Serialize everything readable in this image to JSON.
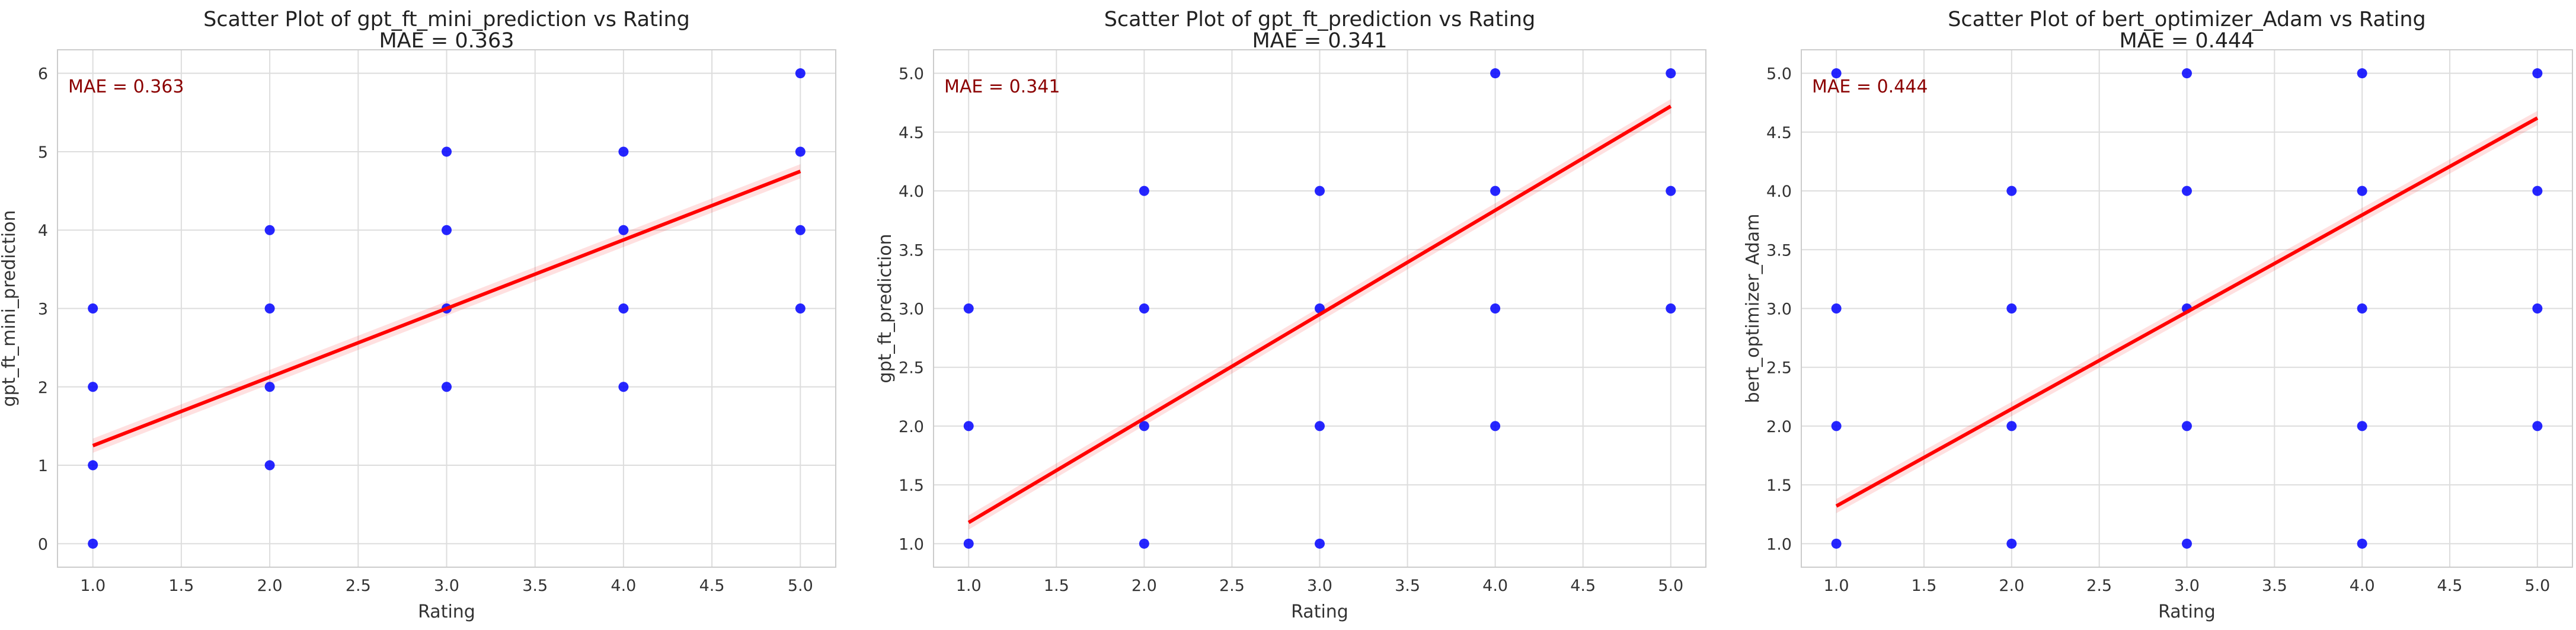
{
  "chart_data": [
    {
      "type": "scatter",
      "title": "Scatter Plot of gpt_ft_mini_prediction vs Rating",
      "subtitle": "MAE = 0.363",
      "annotation": "MAE = 0.363",
      "xlabel": "Rating",
      "ylabel": "gpt_ft_mini_prediction",
      "xlim": [
        0.8,
        5.2
      ],
      "ylim": [
        -0.3,
        6.3
      ],
      "xticks": [
        1.0,
        1.5,
        2.0,
        2.5,
        3.0,
        3.5,
        4.0,
        4.5,
        5.0
      ],
      "xtick_labels": [
        "1.0",
        "1.5",
        "2.0",
        "2.5",
        "3.0",
        "3.5",
        "4.0",
        "4.5",
        "5.0"
      ],
      "yticks": [
        0,
        1,
        2,
        3,
        4,
        5,
        6
      ],
      "ytick_labels": [
        "0",
        "1",
        "2",
        "3",
        "4",
        "5",
        "6"
      ],
      "points": [
        {
          "x": 1,
          "y": 0
        },
        {
          "x": 1,
          "y": 1
        },
        {
          "x": 1,
          "y": 2
        },
        {
          "x": 1,
          "y": 3
        },
        {
          "x": 2,
          "y": 1
        },
        {
          "x": 2,
          "y": 2
        },
        {
          "x": 2,
          "y": 3
        },
        {
          "x": 2,
          "y": 4
        },
        {
          "x": 3,
          "y": 2
        },
        {
          "x": 3,
          "y": 3
        },
        {
          "x": 3,
          "y": 4
        },
        {
          "x": 3,
          "y": 5
        },
        {
          "x": 4,
          "y": 2
        },
        {
          "x": 4,
          "y": 3
        },
        {
          "x": 4,
          "y": 4
        },
        {
          "x": 4,
          "y": 5
        },
        {
          "x": 5,
          "y": 3
        },
        {
          "x": 5,
          "y": 4
        },
        {
          "x": 5,
          "y": 5
        },
        {
          "x": 5,
          "y": 6
        }
      ],
      "regression": {
        "x": [
          1,
          5
        ],
        "y": [
          1.25,
          4.75
        ]
      },
      "grid": true,
      "point_color": "#0000ff",
      "line_color": "#ff0000",
      "annotation_color": "#8b0000"
    },
    {
      "type": "scatter",
      "title": "Scatter Plot of gpt_ft_prediction vs Rating",
      "subtitle": "MAE = 0.341",
      "annotation": "MAE = 0.341",
      "xlabel": "Rating",
      "ylabel": "gpt_ft_prediction",
      "xlim": [
        0.8,
        5.2
      ],
      "ylim": [
        0.8,
        5.2
      ],
      "xticks": [
        1.0,
        1.5,
        2.0,
        2.5,
        3.0,
        3.5,
        4.0,
        4.5,
        5.0
      ],
      "xtick_labels": [
        "1.0",
        "1.5",
        "2.0",
        "2.5",
        "3.0",
        "3.5",
        "4.0",
        "4.5",
        "5.0"
      ],
      "yticks": [
        1.0,
        1.5,
        2.0,
        2.5,
        3.0,
        3.5,
        4.0,
        4.5,
        5.0
      ],
      "ytick_labels": [
        "1.0",
        "1.5",
        "2.0",
        "2.5",
        "3.0",
        "3.5",
        "4.0",
        "4.5",
        "5.0"
      ],
      "points": [
        {
          "x": 1,
          "y": 1
        },
        {
          "x": 1,
          "y": 2
        },
        {
          "x": 1,
          "y": 3
        },
        {
          "x": 2,
          "y": 1
        },
        {
          "x": 2,
          "y": 2
        },
        {
          "x": 2,
          "y": 3
        },
        {
          "x": 2,
          "y": 4
        },
        {
          "x": 3,
          "y": 1
        },
        {
          "x": 3,
          "y": 2
        },
        {
          "x": 3,
          "y": 3
        },
        {
          "x": 3,
          "y": 4
        },
        {
          "x": 4,
          "y": 2
        },
        {
          "x": 4,
          "y": 3
        },
        {
          "x": 4,
          "y": 4
        },
        {
          "x": 4,
          "y": 5
        },
        {
          "x": 5,
          "y": 3
        },
        {
          "x": 5,
          "y": 4
        },
        {
          "x": 5,
          "y": 5
        }
      ],
      "regression": {
        "x": [
          1,
          5
        ],
        "y": [
          1.18,
          4.72
        ]
      },
      "grid": true,
      "point_color": "#0000ff",
      "line_color": "#ff0000",
      "annotation_color": "#8b0000"
    },
    {
      "type": "scatter",
      "title": "Scatter Plot of bert_optimizer_Adam vs Rating",
      "subtitle": "MAE = 0.444",
      "annotation": "MAE = 0.444",
      "xlabel": "Rating",
      "ylabel": "bert_optimizer_Adam",
      "xlim": [
        0.8,
        5.2
      ],
      "ylim": [
        0.8,
        5.2
      ],
      "xticks": [
        1.0,
        1.5,
        2.0,
        2.5,
        3.0,
        3.5,
        4.0,
        4.5,
        5.0
      ],
      "xtick_labels": [
        "1.0",
        "1.5",
        "2.0",
        "2.5",
        "3.0",
        "3.5",
        "4.0",
        "4.5",
        "5.0"
      ],
      "yticks": [
        1.0,
        1.5,
        2.0,
        2.5,
        3.0,
        3.5,
        4.0,
        4.5,
        5.0
      ],
      "ytick_labels": [
        "1.0",
        "1.5",
        "2.0",
        "2.5",
        "3.0",
        "3.5",
        "4.0",
        "4.5",
        "5.0"
      ],
      "points": [
        {
          "x": 1,
          "y": 1
        },
        {
          "x": 1,
          "y": 2
        },
        {
          "x": 1,
          "y": 3
        },
        {
          "x": 1,
          "y": 5
        },
        {
          "x": 2,
          "y": 1
        },
        {
          "x": 2,
          "y": 2
        },
        {
          "x": 2,
          "y": 3
        },
        {
          "x": 2,
          "y": 4
        },
        {
          "x": 3,
          "y": 1
        },
        {
          "x": 3,
          "y": 2
        },
        {
          "x": 3,
          "y": 3
        },
        {
          "x": 3,
          "y": 4
        },
        {
          "x": 3,
          "y": 5
        },
        {
          "x": 4,
          "y": 1
        },
        {
          "x": 4,
          "y": 2
        },
        {
          "x": 4,
          "y": 3
        },
        {
          "x": 4,
          "y": 4
        },
        {
          "x": 4,
          "y": 5
        },
        {
          "x": 5,
          "y": 2
        },
        {
          "x": 5,
          "y": 3
        },
        {
          "x": 5,
          "y": 4
        },
        {
          "x": 5,
          "y": 5
        }
      ],
      "regression": {
        "x": [
          1,
          5
        ],
        "y": [
          1.32,
          4.62
        ]
      },
      "grid": true,
      "point_color": "#0000ff",
      "line_color": "#ff0000",
      "annotation_color": "#8b0000"
    }
  ]
}
